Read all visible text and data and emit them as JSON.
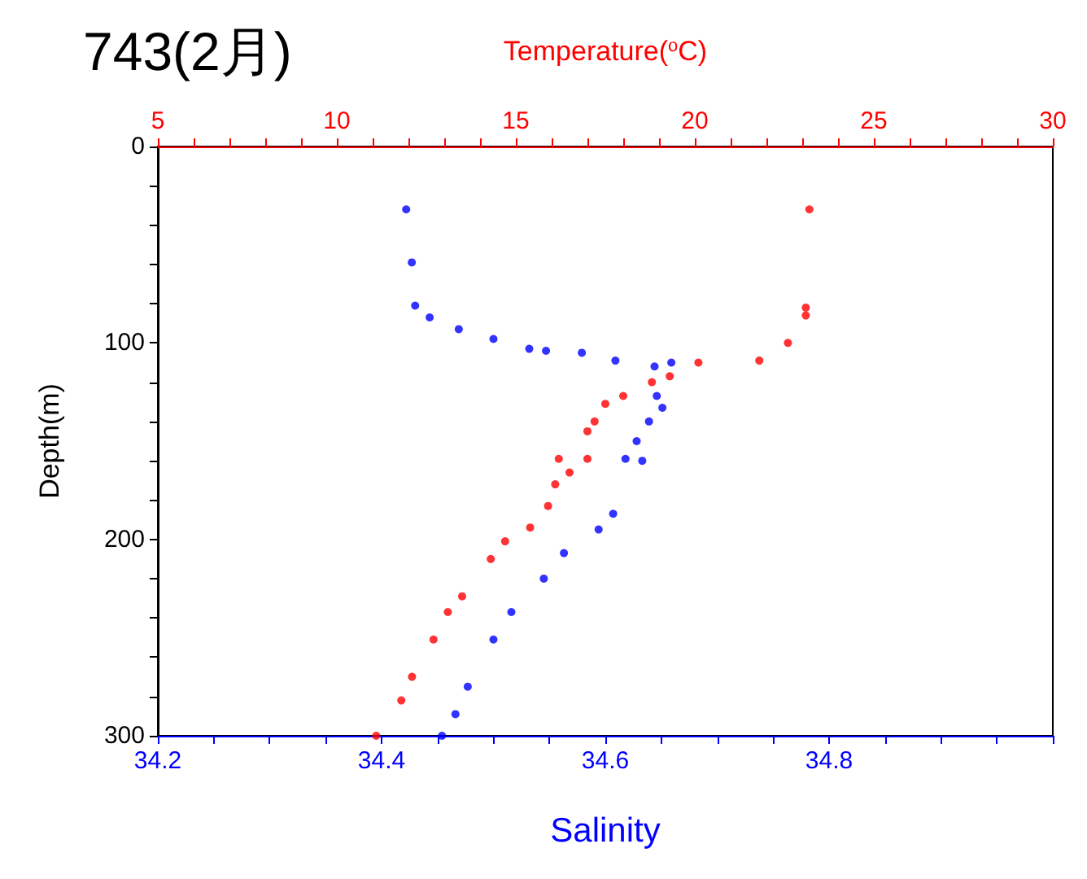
{
  "chart_data": {
    "type": "scatter",
    "title": "743(2月)",
    "xlabel": "Salinity",
    "x2label": "Temperature($^{o}$C)",
    "ylabel": "Depth(m)",
    "marker": "circle",
    "xlim": [
      34.2,
      35.0
    ],
    "xticks": [
      34.2,
      {
        "value": 34.25,
        "label": null
      },
      {
        "value": 34.3,
        "label": null
      },
      {
        "value": 34.35,
        "label": null
      },
      34.4,
      {
        "value": 34.45,
        "label": null
      },
      {
        "value": 34.5,
        "label": null
      },
      {
        "value": 34.55,
        "label": null
      },
      34.6,
      {
        "value": 34.65,
        "label": null
      },
      {
        "value": 34.7,
        "label": null
      },
      {
        "value": 34.75,
        "label": null
      },
      34.8,
      {
        "value": 34.85,
        "label": null
      },
      {
        "value": 34.9,
        "label": null
      },
      {
        "value": 34.95,
        "label": null
      },
      {
        "value": 35.0,
        "label": null
      }
    ],
    "x2lim": [
      5,
      30
    ],
    "x2ticks": [
      5,
      {
        "value": 6,
        "label": null
      },
      {
        "value": 7,
        "label": null
      },
      {
        "value": 8,
        "label": null
      },
      {
        "value": 9,
        "label": null
      },
      10,
      {
        "value": 11,
        "label": null
      },
      {
        "value": 12,
        "label": null
      },
      {
        "value": 13,
        "label": null
      },
      {
        "value": 14,
        "label": null
      },
      15,
      {
        "value": 16,
        "label": null
      },
      {
        "value": 17,
        "label": null
      },
      {
        "value": 18,
        "label": null
      },
      {
        "value": 19,
        "label": null
      },
      20,
      {
        "value": 21,
        "label": null
      },
      {
        "value": 22,
        "label": null
      },
      {
        "value": 23,
        "label": null
      },
      {
        "value": 24,
        "label": null
      },
      25,
      {
        "value": 26,
        "label": null
      },
      {
        "value": 27,
        "label": null
      },
      {
        "value": 28,
        "label": null
      },
      {
        "value": 29,
        "label": null
      },
      30
    ],
    "ylim": [
      300,
      0
    ],
    "yticks": [
      0,
      {
        "value": 20,
        "label": null
      },
      {
        "value": 40,
        "label": null
      },
      {
        "value": 60,
        "label": null
      },
      {
        "value": 80,
        "label": null
      },
      100,
      {
        "value": 120,
        "label": null
      },
      {
        "value": 140,
        "label": null
      },
      {
        "value": 160,
        "label": null
      },
      {
        "value": 180,
        "label": null
      },
      200,
      {
        "value": 220,
        "label": null
      },
      {
        "value": 240,
        "label": null
      },
      {
        "value": 260,
        "label": null
      },
      {
        "value": 280,
        "label": null
      },
      300
    ],
    "series": [
      {
        "color": "#0000ff",
        "x": [
          34.422,
          34.427,
          34.43,
          34.443,
          34.469,
          34.5,
          34.532,
          34.547,
          34.579,
          34.609,
          34.659,
          34.644,
          34.646,
          34.651,
          34.639,
          34.628,
          34.618,
          34.633,
          34.607,
          34.594,
          34.563,
          34.545,
          34.516,
          34.5,
          34.477,
          34.466,
          34.454
        ],
        "values": [
          32,
          59,
          81,
          87,
          93,
          98,
          103,
          104,
          105,
          109,
          110,
          112,
          127,
          133,
          140,
          150,
          159,
          160,
          187,
          195,
          207,
          220,
          237,
          251,
          275,
          289,
          300
        ]
      },
      {
        "color": "#ff0000",
        "axis": "x2",
        "x": [
          23.2,
          23.1,
          23.1,
          22.6,
          21.8,
          20.1,
          19.3,
          18.8,
          18.0,
          17.5,
          17.2,
          17.0,
          16.2,
          17.0,
          16.5,
          16.1,
          15.9,
          15.4,
          14.7,
          14.3,
          13.5,
          13.1,
          12.7,
          12.1,
          11.8,
          11.1
        ],
        "values": [
          32,
          82,
          86,
          100,
          109,
          110,
          117,
          120,
          127,
          131,
          140,
          145,
          159,
          159,
          166,
          172,
          183,
          194,
          201,
          210,
          229,
          237,
          251,
          270,
          282,
          300
        ]
      }
    ]
  }
}
